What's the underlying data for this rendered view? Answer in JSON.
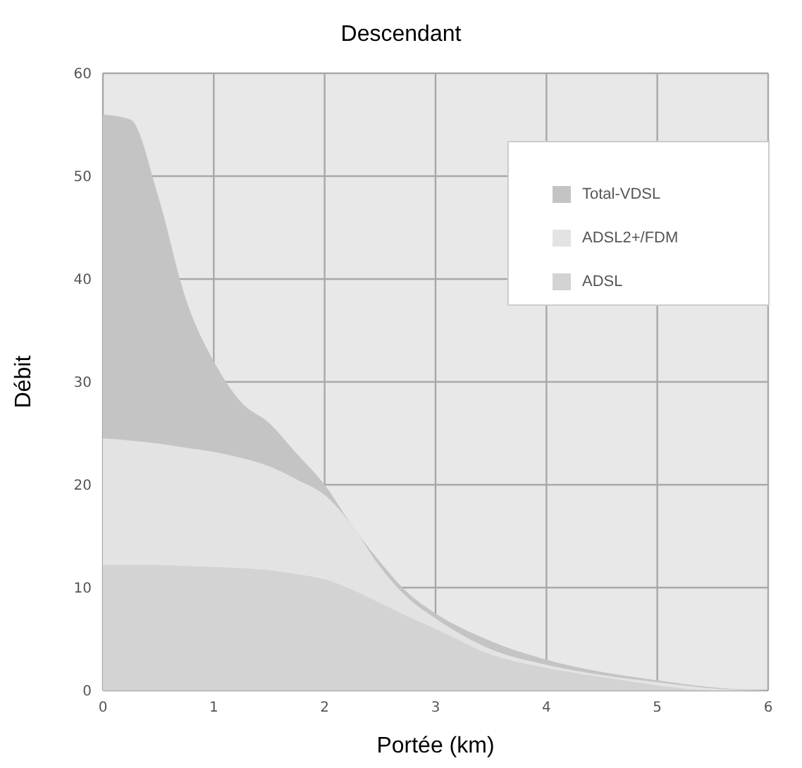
{
  "chart_data": {
    "type": "area",
    "title": "Descendant",
    "xlabel": "Portée (km)",
    "ylabel": "Débit",
    "x": [
      0,
      0.25,
      0.5,
      0.75,
      1,
      1.25,
      1.5,
      1.75,
      2,
      2.25,
      2.5,
      2.75,
      3,
      3.5,
      4,
      4.5,
      5,
      5.5,
      6
    ],
    "series": [
      {
        "name": "Total-VDSL",
        "color": "#c4c4c4",
        "values": [
          56,
          55.5,
          48,
          38,
          32,
          28,
          26,
          23,
          20,
          16,
          12.5,
          9.5,
          7.5,
          4.8,
          3,
          1.8,
          1,
          0.3,
          0
        ]
      },
      {
        "name": "ADSL2+/FDM",
        "color": "#e3e3e3",
        "values": [
          24.5,
          24.3,
          24,
          23.6,
          23.2,
          22.6,
          21.8,
          20.5,
          19,
          16,
          12,
          9,
          7,
          4,
          2.5,
          1.5,
          0.8,
          0.2,
          0
        ]
      },
      {
        "name": "ADSL",
        "color": "#d3d3d3",
        "values": [
          12.2,
          12.2,
          12.2,
          12.1,
          12,
          11.9,
          11.7,
          11.3,
          10.8,
          9.8,
          8.5,
          7.2,
          6,
          3.5,
          2.2,
          1.3,
          0.5,
          0,
          0
        ]
      }
    ],
    "xlim": [
      0,
      6
    ],
    "xticks": [
      0,
      1,
      2,
      3,
      4,
      5,
      6
    ],
    "ylim": [
      0,
      60
    ],
    "yticks": [
      0,
      10,
      20,
      30,
      40,
      50,
      60
    ],
    "grid": true,
    "legend": "top right"
  }
}
